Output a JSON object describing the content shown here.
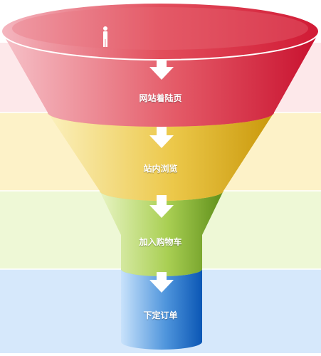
{
  "funnel": {
    "top_icon": "person-icon",
    "arrow_icon": "down-arrow-icon",
    "stages": [
      {
        "label": "网站着陆页",
        "color_light": "#f6c2c9",
        "color_mid": "#e45a67",
        "color_dark": "#c8102e",
        "band": "#fde8ea"
      },
      {
        "label": "站内浏览",
        "color_light": "#fbf0bd",
        "color_mid": "#ecc84a",
        "color_dark": "#c9980b",
        "band": "#fdf2c8"
      },
      {
        "label": "加入购物车",
        "color_light": "#e8f4c3",
        "color_mid": "#a9cf53",
        "color_dark": "#5f8f1a",
        "band": "#eef8d6"
      },
      {
        "label": "下定订单",
        "color_light": "#c8e2fb",
        "color_mid": "#4f95dc",
        "color_dark": "#0b57b5",
        "band": "#d6e8fb"
      }
    ]
  }
}
